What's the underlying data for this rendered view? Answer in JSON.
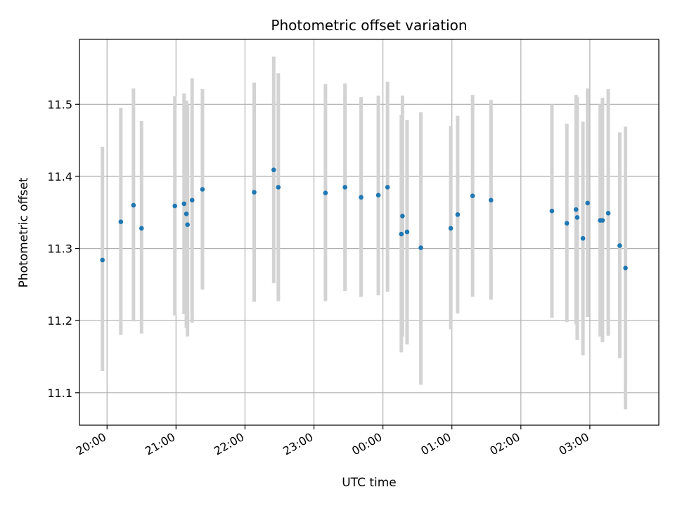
{
  "chart_data": {
    "type": "scatter",
    "title": "Photometric offset variation",
    "xlabel": "UTC time",
    "ylabel": "Photometric offset",
    "x_is_time": true,
    "x_ticks": [
      "20:00",
      "21:00",
      "22:00",
      "23:00",
      "00:00",
      "01:00",
      "02:00",
      "03:00"
    ],
    "x_tick_hours": [
      20,
      21,
      22,
      23,
      24,
      25,
      26,
      27
    ],
    "xlim_hours": [
      19.6,
      28.0
    ],
    "y_ticks": [
      "11.1",
      "11.2",
      "11.3",
      "11.4",
      "11.5"
    ],
    "y_tick_values": [
      11.1,
      11.2,
      11.3,
      11.4,
      11.5
    ],
    "ylim": [
      11.055,
      11.59
    ],
    "grid": true,
    "marker_color": "#1f77b4",
    "errorbar_color": "#d3d3d3",
    "points": [
      {
        "t": "19:56",
        "y": 11.284,
        "lo": 11.13,
        "hi": 11.441
      },
      {
        "t": "20:12",
        "y": 11.337,
        "lo": 11.18,
        "hi": 11.495
      },
      {
        "t": "20:23",
        "y": 11.36,
        "lo": 11.199,
        "hi": 11.522
      },
      {
        "t": "20:30",
        "y": 11.328,
        "lo": 11.182,
        "hi": 11.477
      },
      {
        "t": "20:59",
        "y": 11.359,
        "lo": 11.207,
        "hi": 11.511
      },
      {
        "t": "21:07",
        "y": 11.362,
        "lo": 11.209,
        "hi": 11.515
      },
      {
        "t": "21:09",
        "y": 11.348,
        "lo": 11.19,
        "hi": 11.505
      },
      {
        "t": "21:10",
        "y": 11.333,
        "lo": 11.178,
        "hi": 11.5
      },
      {
        "t": "21:14",
        "y": 11.367,
        "lo": 11.197,
        "hi": 11.536
      },
      {
        "t": "21:23",
        "y": 11.382,
        "lo": 11.243,
        "hi": 11.521
      },
      {
        "t": "22:08",
        "y": 11.378,
        "lo": 11.226,
        "hi": 11.53
      },
      {
        "t": "22:25",
        "y": 11.409,
        "lo": 11.252,
        "hi": 11.566
      },
      {
        "t": "22:29",
        "y": 11.385,
        "lo": 11.227,
        "hi": 11.543
      },
      {
        "t": "23:10",
        "y": 11.377,
        "lo": 11.227,
        "hi": 11.528
      },
      {
        "t": "23:27",
        "y": 11.385,
        "lo": 11.241,
        "hi": 11.529
      },
      {
        "t": "23:41",
        "y": 11.371,
        "lo": 11.233,
        "hi": 11.51
      },
      {
        "t": "23:56",
        "y": 11.374,
        "lo": 11.235,
        "hi": 11.512
      },
      {
        "t": "00:04",
        "y": 11.385,
        "lo": 11.24,
        "hi": 11.531
      },
      {
        "t": "00:16",
        "y": 11.32,
        "lo": 11.156,
        "hi": 11.485
      },
      {
        "t": "00:17",
        "y": 11.345,
        "lo": 11.178,
        "hi": 11.512
      },
      {
        "t": "00:21",
        "y": 11.323,
        "lo": 11.167,
        "hi": 11.478
      },
      {
        "t": "00:33",
        "y": 11.301,
        "lo": 11.111,
        "hi": 11.489
      },
      {
        "t": "00:59",
        "y": 11.328,
        "lo": 11.188,
        "hi": 11.47
      },
      {
        "t": "01:05",
        "y": 11.347,
        "lo": 11.21,
        "hi": 11.484
      },
      {
        "t": "01:18",
        "y": 11.373,
        "lo": 11.233,
        "hi": 11.513
      },
      {
        "t": "01:34",
        "y": 11.367,
        "lo": 11.229,
        "hi": 11.506
      },
      {
        "t": "02:27",
        "y": 11.352,
        "lo": 11.204,
        "hi": 11.5
      },
      {
        "t": "02:40",
        "y": 11.335,
        "lo": 11.198,
        "hi": 11.473
      },
      {
        "t": "02:48",
        "y": 11.354,
        "lo": 11.195,
        "hi": 11.513
      },
      {
        "t": "02:49",
        "y": 11.343,
        "lo": 11.173,
        "hi": 11.51
      },
      {
        "t": "02:54",
        "y": 11.314,
        "lo": 11.152,
        "hi": 11.476
      },
      {
        "t": "02:58",
        "y": 11.363,
        "lo": 11.205,
        "hi": 11.522
      },
      {
        "t": "03:09",
        "y": 11.339,
        "lo": 11.178,
        "hi": 11.5
      },
      {
        "t": "03:11",
        "y": 11.339,
        "lo": 11.17,
        "hi": 11.509
      },
      {
        "t": "03:16",
        "y": 11.349,
        "lo": 11.179,
        "hi": 11.521
      },
      {
        "t": "03:26",
        "y": 11.304,
        "lo": 11.148,
        "hi": 11.461
      },
      {
        "t": "03:31",
        "y": 11.273,
        "lo": 11.077,
        "hi": 11.469
      }
    ]
  }
}
